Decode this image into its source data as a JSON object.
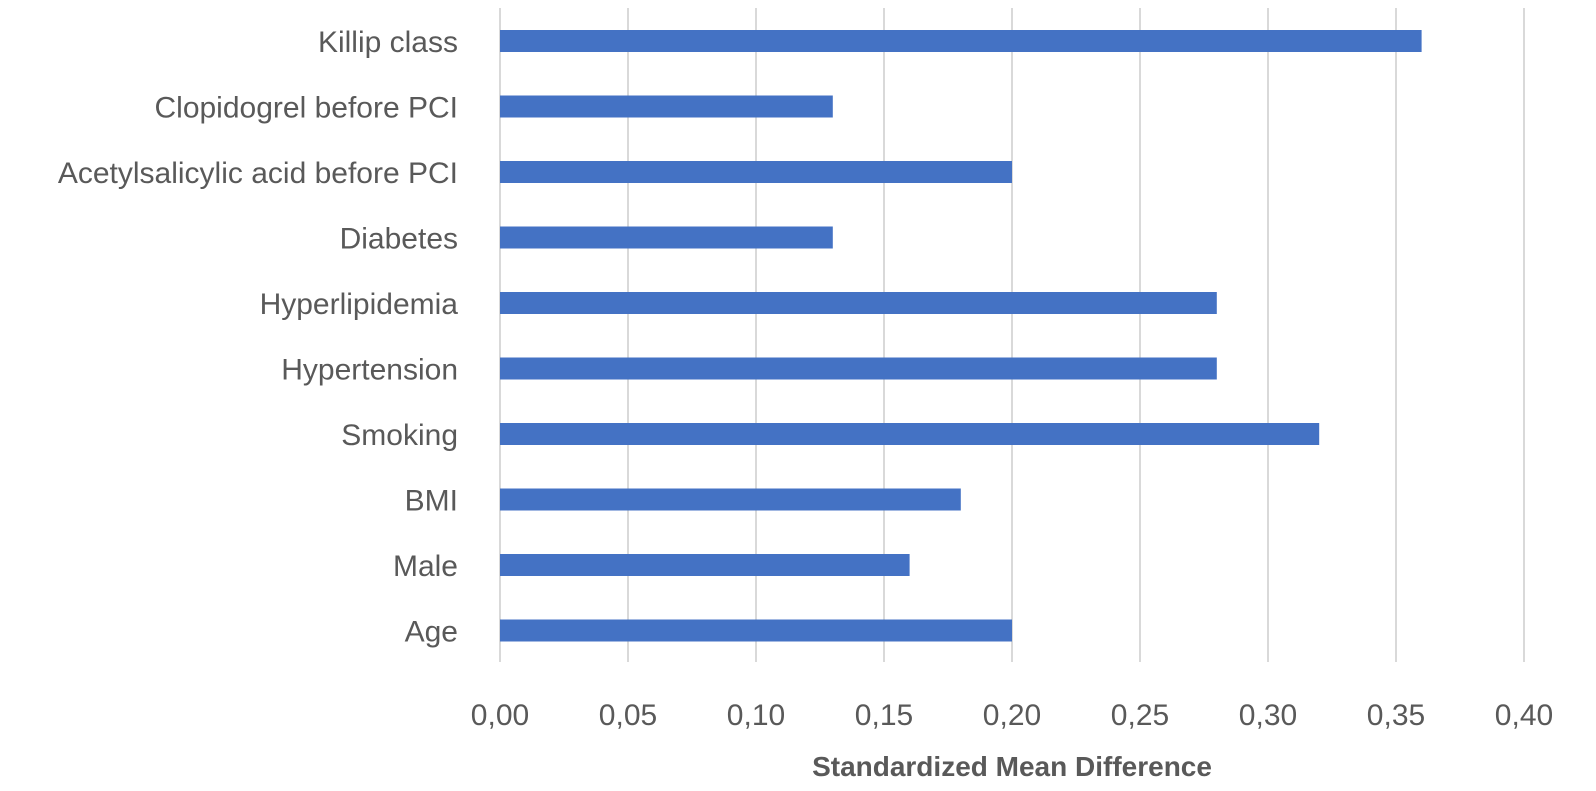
{
  "chart_data": {
    "type": "bar",
    "orientation": "horizontal",
    "categories": [
      "Killip class",
      "Clopidogrel before PCI",
      "Acetylsalicylic acid before PCI",
      "Diabetes",
      "Hyperlipidemia",
      "Hypertension",
      "Smoking",
      "BMI",
      "Male",
      "Age"
    ],
    "values": [
      0.36,
      0.13,
      0.2,
      0.13,
      0.28,
      0.28,
      0.32,
      0.18,
      0.16,
      0.2
    ],
    "xlabel": "Standardized Mean Difference",
    "ylabel": "",
    "title": "",
    "xlim": [
      0,
      0.4
    ],
    "xticks": [
      "0,00",
      "0,05",
      "0,10",
      "0,15",
      "0,20",
      "0,25",
      "0,30",
      "0,35",
      "0,40"
    ],
    "grid": "vertical",
    "legend": "none",
    "bar_color": "#4472C4",
    "grid_color": "#D9D9D9"
  }
}
